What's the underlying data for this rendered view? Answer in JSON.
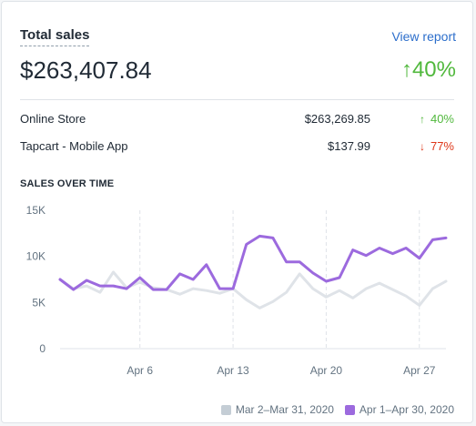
{
  "card": {
    "title": "Total sales",
    "view_report_label": "View report",
    "total_value": "$263,407.84",
    "change_arrow": "↑",
    "change_value": "40%"
  },
  "channels": [
    {
      "name": "Online Store",
      "value": "$263,269.85",
      "arrow": "↑",
      "direction": "up",
      "pct": "40%"
    },
    {
      "name": "Tapcart - Mobile App",
      "value": "$137.99",
      "arrow": "↓",
      "direction": "down",
      "pct": "77%"
    }
  ],
  "section_title": "SALES OVER TIME",
  "colors": {
    "current": "#9c6ade",
    "previous": "#dfe3e8",
    "up": "#50b83c",
    "down": "#de3618",
    "link": "#2c6ecb"
  },
  "chart_data": {
    "type": "line",
    "y_ticks": [
      {
        "label": "15K",
        "value": 15000
      },
      {
        "label": "10K",
        "value": 10000
      },
      {
        "label": "5K",
        "value": 5000
      },
      {
        "label": "0",
        "value": 0
      }
    ],
    "ylim": [
      0,
      15000
    ],
    "x_ticks": [
      {
        "label": "Apr 6",
        "index": 6
      },
      {
        "label": "Apr 13",
        "index": 13
      },
      {
        "label": "Apr 20",
        "index": 20
      },
      {
        "label": "Apr 27",
        "index": 27
      }
    ],
    "x_count": 30,
    "grid": true,
    "legend_position": "bottom-right",
    "series": [
      {
        "name": "Mar 2–Mar 31, 2020",
        "color": "#dfe3e8",
        "values": [
          7500,
          6500,
          6800,
          6100,
          8300,
          6600,
          7200,
          6600,
          6400,
          5900,
          6500,
          6300,
          6000,
          6500,
          5300,
          4400,
          5100,
          6100,
          8100,
          6500,
          5600,
          6300,
          5500,
          6500,
          7100,
          6400,
          5700,
          4700,
          6500,
          7300
        ]
      },
      {
        "name": "Apr 1–Apr 30, 2020",
        "color": "#9c6ade",
        "values": [
          7500,
          6400,
          7400,
          6800,
          6800,
          6500,
          7700,
          6400,
          6400,
          8100,
          7500,
          9100,
          6500,
          6500,
          11300,
          12200,
          12000,
          9400,
          9400,
          8200,
          7300,
          7700,
          10700,
          10100,
          10900,
          10300,
          10900,
          9800,
          11800,
          12000
        ]
      }
    ]
  }
}
